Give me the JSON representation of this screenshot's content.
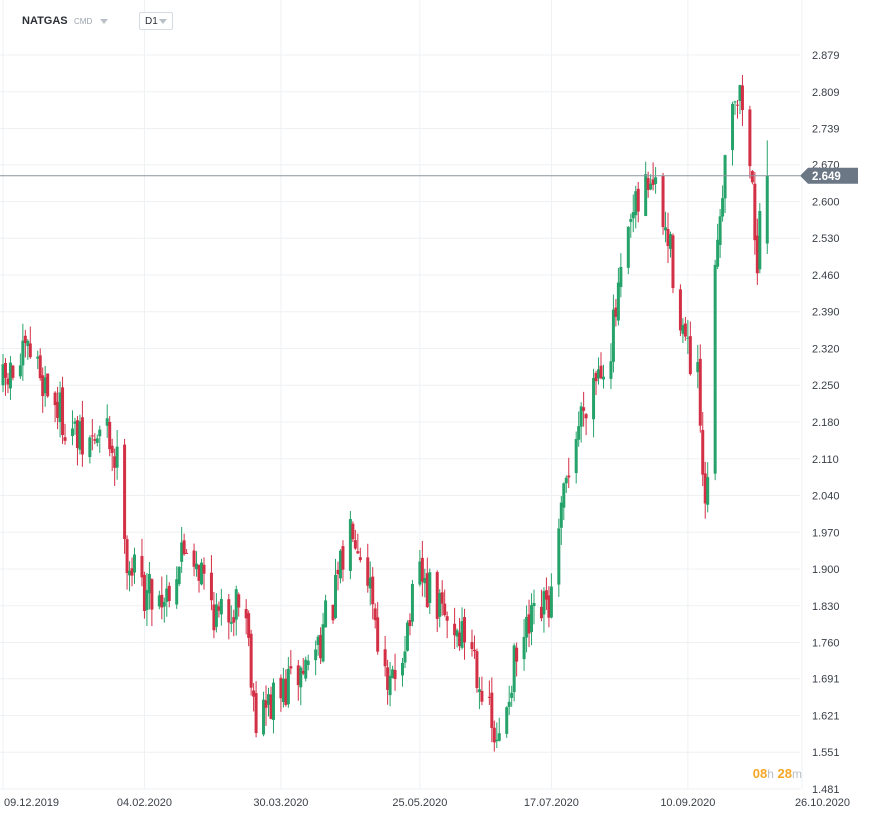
{
  "header": {
    "symbol": "NATGAS",
    "sub_label": "CMD",
    "timeframe": "D1"
  },
  "timer": {
    "hours": "08",
    "hours_unit": "h",
    "minutes": "28",
    "minutes_unit": "m"
  },
  "colors": {
    "up": "#26a36a",
    "down": "#d32f45",
    "grid": "#eef1f4",
    "price_line": "#8a949e",
    "price_tag": "#6b7785",
    "timer": "#f5a623"
  },
  "chart_data": {
    "type": "candlestick",
    "title": "NATGAS",
    "timeframe": "D1",
    "current_price": 2.649,
    "ylim": [
      1.481,
      2.915
    ],
    "y_ticks": [
      "2.879",
      "2.809",
      "2.739",
      "2.670",
      "2.600",
      "2.530",
      "2.460",
      "2.390",
      "2.320",
      "2.250",
      "2.180",
      "2.110",
      "2.040",
      "1.970",
      "1.900",
      "1.830",
      "1.760",
      "1.691",
      "1.621",
      "1.551",
      "1.481"
    ],
    "x_ticks": [
      "09.12.2019",
      "04.02.2020",
      "30.03.2020",
      "25.05.2020",
      "17.07.2020",
      "10.09.2020",
      "26.10.2020"
    ],
    "grid": true,
    "approx_close_path": [
      [
        "09.12.2019",
        2.25
      ],
      [
        "2019-12-20",
        2.31
      ],
      [
        "2020-01-01",
        2.2
      ],
      [
        "2020-01-10",
        2.13
      ],
      [
        "2020-01-20",
        2.16
      ],
      [
        "2020-01-24",
        2.1
      ],
      [
        "2020-01-27",
        2.0
      ],
      [
        "2020-01-28",
        1.92
      ],
      [
        "04.02.2020",
        1.86
      ],
      [
        "2020-02-12",
        1.85
      ],
      [
        "2020-02-22",
        1.96
      ],
      [
        "2020-03-05",
        1.8
      ],
      [
        "2020-03-15",
        1.86
      ],
      [
        "2020-03-20",
        1.62
      ],
      [
        "30.03.2020",
        1.66
      ],
      [
        "2020-04-10",
        1.72
      ],
      [
        "2020-04-20",
        1.83
      ],
      [
        "2020-04-28",
        2.0
      ],
      [
        "2020-05-05",
        1.88
      ],
      [
        "2020-05-12",
        1.65
      ],
      [
        "25.05.2020",
        1.88
      ],
      [
        "2020-06-05",
        1.8
      ],
      [
        "2020-06-15",
        1.76
      ],
      [
        "2020-06-25",
        1.55
      ],
      [
        "2020-07-01",
        1.7
      ],
      [
        "2020-07-08",
        1.78
      ],
      [
        "17.07.2020",
        1.84
      ],
      [
        "2020-07-24",
        2.1
      ],
      [
        "2020-08-01",
        2.25
      ],
      [
        "2020-08-10",
        2.33
      ],
      [
        "2020-08-18",
        2.55
      ],
      [
        "2020-08-26",
        2.65
      ],
      [
        "2020-09-03",
        2.5
      ],
      [
        "10.09.2020",
        2.3
      ],
      [
        "2020-09-14",
        2.25
      ],
      [
        "2020-09-17",
        1.98
      ],
      [
        "2020-09-22",
        2.55
      ],
      [
        "2020-09-28",
        2.82
      ],
      [
        "2020-10-03",
        2.78
      ],
      [
        "2020-10-08",
        2.5
      ],
      [
        "2020-10-12",
        2.649
      ]
    ]
  }
}
